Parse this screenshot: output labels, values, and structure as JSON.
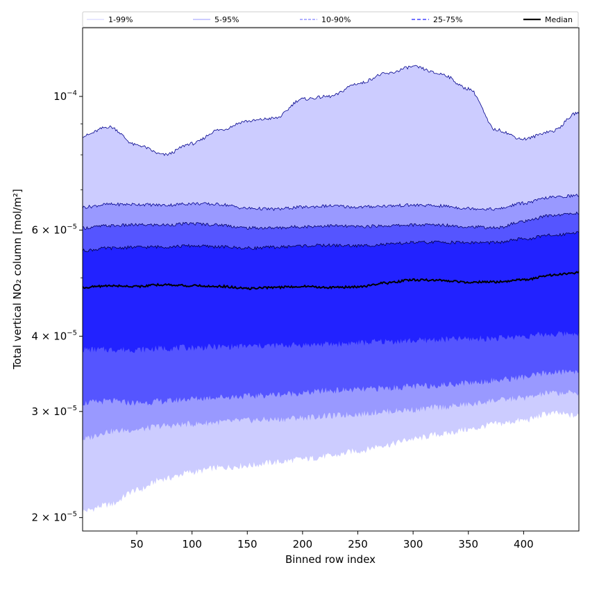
{
  "chart_data": {
    "type": "area",
    "xlabel": "Binned row index",
    "ylabel": "Total vertical NO₂ column [mol/m²]",
    "xlim": [
      1,
      450
    ],
    "ylim": [
      1.9e-05,
      0.00013
    ],
    "yscale": "log",
    "grid": false,
    "legend_position": "top",
    "x_ticks": [
      50,
      100,
      150,
      200,
      250,
      300,
      350,
      400
    ],
    "x_tick_labels": [
      "50",
      "100",
      "150",
      "200",
      "250",
      "300",
      "350",
      "400"
    ],
    "y_ticks": [
      {
        "value": 2e-05,
        "mantissa": "2",
        "exp": "−5"
      },
      {
        "value": 3e-05,
        "mantissa": "3",
        "exp": "−5"
      },
      {
        "value": 4e-05,
        "mantissa": "4",
        "exp": "−5"
      },
      {
        "value": 6e-05,
        "mantissa": "6",
        "exp": "−5"
      },
      {
        "value": 0.0001,
        "mantissa": "",
        "exp": "−4"
      }
    ],
    "x": [
      1,
      25,
      50,
      75,
      100,
      125,
      150,
      175,
      200,
      225,
      250,
      275,
      300,
      325,
      350,
      375,
      400,
      425,
      450
    ],
    "bands": [
      {
        "name": "1-99%",
        "color": "#ccccff",
        "line_color": "#00008b",
        "lower": [
          2.05e-05,
          2.1e-05,
          2.22e-05,
          2.32e-05,
          2.38e-05,
          2.42e-05,
          2.44e-05,
          2.47e-05,
          2.5e-05,
          2.53e-05,
          2.58e-05,
          2.64e-05,
          2.7e-05,
          2.75e-05,
          2.8e-05,
          2.86e-05,
          2.9e-05,
          2.98e-05,
          2.95e-05
        ],
        "upper": [
          8.6e-05,
          8.9e-05,
          8.3e-05,
          8e-05,
          8.35e-05,
          8.8e-05,
          9.1e-05,
          9.2e-05,
          9.9e-05,
          0.0001,
          0.000105,
          0.000109,
          0.000112,
          0.000109,
          0.000103,
          8.8e-05,
          8.5e-05,
          8.75e-05,
          9.4e-05
        ]
      },
      {
        "name": "5-95%",
        "color": "#9999ff",
        "line_color": "#00008b",
        "lower": [
          2.7e-05,
          2.78e-05,
          2.8e-05,
          2.84e-05,
          2.86e-05,
          2.88e-05,
          2.9e-05,
          2.91e-05,
          2.93e-05,
          2.95e-05,
          2.97e-05,
          3e-05,
          3.02e-05,
          3.05e-05,
          3.08e-05,
          3.13e-05,
          3.16e-05,
          3.22e-05,
          3.22e-05
        ],
        "upper": [
          6.55e-05,
          6.62e-05,
          6.62e-05,
          6.6e-05,
          6.64e-05,
          6.62e-05,
          6.52e-05,
          6.5e-05,
          6.55e-05,
          6.58e-05,
          6.55e-05,
          6.58e-05,
          6.6e-05,
          6.58e-05,
          6.52e-05,
          6.5e-05,
          6.65e-05,
          6.8e-05,
          6.85e-05
        ]
      },
      {
        "name": "10-90%",
        "color": "#5555ff",
        "line_color": "#000066",
        "lower": [
          3.1e-05,
          3.12e-05,
          3.1e-05,
          3.12e-05,
          3.15e-05,
          3.17e-05,
          3.18e-05,
          3.2e-05,
          3.22e-05,
          3.25e-05,
          3.26e-05,
          3.28e-05,
          3.3e-05,
          3.32e-05,
          3.35e-05,
          3.38e-05,
          3.42e-05,
          3.48e-05,
          3.5e-05
        ],
        "upper": [
          6.05e-05,
          6.1e-05,
          6.12e-05,
          6.12e-05,
          6.15e-05,
          6.12e-05,
          6.05e-05,
          6.05e-05,
          6.08e-05,
          6.1e-05,
          6.08e-05,
          6.1e-05,
          6.12e-05,
          6.12e-05,
          6.08e-05,
          6.05e-05,
          6.2e-05,
          6.35e-05,
          6.4e-05
        ]
      },
      {
        "name": "25-75%",
        "color": "#2222ff",
        "line_color": "#000044",
        "lower": [
          3.8e-05,
          3.8e-05,
          3.8e-05,
          3.82e-05,
          3.83e-05,
          3.84e-05,
          3.85e-05,
          3.86e-05,
          3.87e-05,
          3.88e-05,
          3.9e-05,
          3.92e-05,
          3.93e-05,
          3.95e-05,
          3.96e-05,
          3.97e-05,
          4e-05,
          4.03e-05,
          4.05e-05
        ],
        "upper": [
          5.55e-05,
          5.6e-05,
          5.62e-05,
          5.63e-05,
          5.65e-05,
          5.63e-05,
          5.6e-05,
          5.62e-05,
          5.65e-05,
          5.66e-05,
          5.65e-05,
          5.68e-05,
          5.72e-05,
          5.73e-05,
          5.72e-05,
          5.72e-05,
          5.8e-05,
          5.88e-05,
          5.95e-05
        ]
      }
    ],
    "median": {
      "name": "Median",
      "color": "#000000",
      "values": [
        4.82e-05,
        4.85e-05,
        4.84e-05,
        4.87e-05,
        4.85e-05,
        4.84e-05,
        4.8e-05,
        4.82e-05,
        4.84e-05,
        4.82e-05,
        4.83e-05,
        4.9e-05,
        4.96e-05,
        4.95e-05,
        4.92e-05,
        4.92e-05,
        4.96e-05,
        5.05e-05,
        5.1e-05
      ]
    },
    "legend": [
      {
        "label": "1-99%",
        "color": "#ccccff",
        "dash": "",
        "width": 1
      },
      {
        "label": "5-95%",
        "color": "#9999ff",
        "dash": "",
        "width": 1
      },
      {
        "label": "10-90%",
        "color": "#8080ff",
        "dash": "4,2",
        "width": 1.2
      },
      {
        "label": "25-75%",
        "color": "#4444ff",
        "dash": "5,3",
        "width": 1.5
      },
      {
        "label": "Median",
        "color": "#000000",
        "dash": "",
        "width": 2.2
      }
    ]
  }
}
